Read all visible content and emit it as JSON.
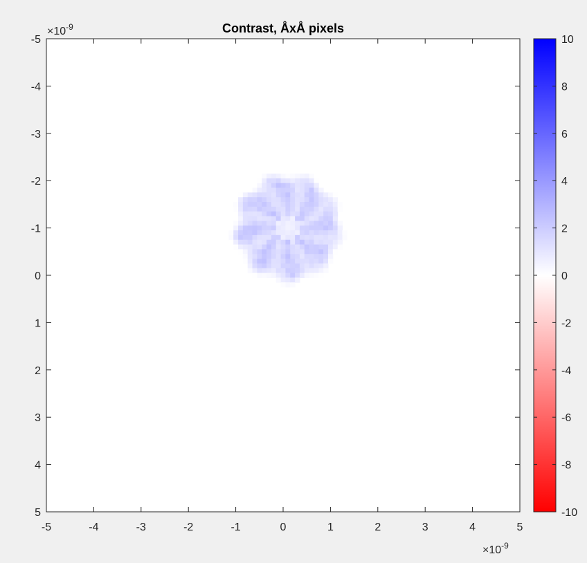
{
  "chart_data": {
    "type": "heatmap",
    "title": "Contrast, ÅxÅ pixels",
    "xlabel": "",
    "ylabel": "",
    "xlim": [
      -5,
      5
    ],
    "ylim": [
      -5,
      5
    ],
    "y_direction": "reversed",
    "x_ticks": [
      "-5",
      "-4",
      "-3",
      "-2",
      "-1",
      "0",
      "1",
      "2",
      "3",
      "4",
      "5"
    ],
    "y_ticks": [
      "-5",
      "-4",
      "-3",
      "-2",
      "-1",
      "0",
      "1",
      "2",
      "3",
      "4",
      "5"
    ],
    "x_multiplier": "×10",
    "x_multiplier_exp": "-9",
    "y_multiplier": "×10",
    "y_multiplier_exp": "-9",
    "colorbar": {
      "range": [
        -10,
        10
      ],
      "ticks": [
        "10",
        "8",
        "6",
        "4",
        "2",
        "0",
        "-2",
        "-4",
        "-6",
        "-8",
        "-10"
      ],
      "color_high": "#0000ff",
      "color_mid": "#ffffff",
      "color_low": "#ff0000"
    },
    "feature": {
      "description_value_max": 2.5,
      "center": [
        0.1,
        -1.0
      ],
      "radius": 1.1
    },
    "background_value": 0,
    "grid": false
  }
}
